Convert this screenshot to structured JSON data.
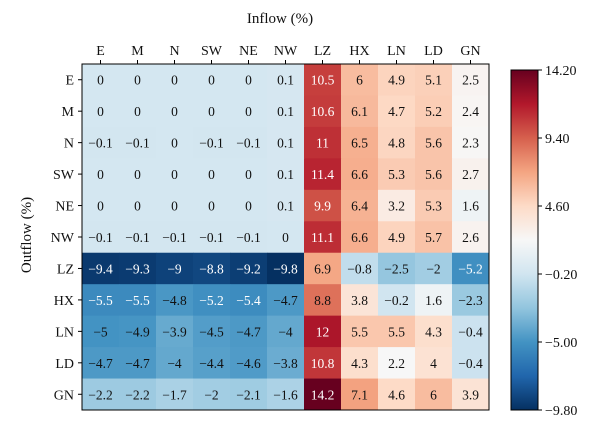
{
  "chart_data": {
    "type": "heatmap",
    "xlabel": "Inflow (%)",
    "ylabel": "Outflow (%)",
    "columns": [
      "E",
      "M",
      "N",
      "SW",
      "NE",
      "NW",
      "LZ",
      "HX",
      "LN",
      "LD",
      "GN"
    ],
    "rows": [
      "E",
      "M",
      "N",
      "SW",
      "NE",
      "NW",
      "LZ",
      "HX",
      "LN",
      "LD",
      "GN"
    ],
    "values": [
      [
        0,
        0,
        0,
        0,
        0,
        0.1,
        10.5,
        6,
        4.9,
        5.1,
        2.5
      ],
      [
        0,
        0,
        0,
        0,
        0,
        0.1,
        10.6,
        6.1,
        4.7,
        5.2,
        2.4
      ],
      [
        -0.1,
        -0.1,
        0,
        -0.1,
        -0.1,
        0.1,
        11,
        6.5,
        4.8,
        5.6,
        2.3
      ],
      [
        0,
        0,
        0,
        0,
        0,
        0.1,
        11.4,
        6.6,
        5.3,
        5.6,
        2.7
      ],
      [
        0,
        0,
        0,
        0,
        0,
        0.1,
        9.9,
        6.4,
        3.2,
        5.3,
        1.6
      ],
      [
        -0.1,
        -0.1,
        -0.1,
        -0.1,
        -0.1,
        0,
        11.1,
        6.6,
        4.9,
        5.7,
        2.6
      ],
      [
        -9.4,
        -9.3,
        -9,
        -8.8,
        -9.2,
        -9.8,
        6.9,
        -0.8,
        -2.5,
        -2,
        -5.2
      ],
      [
        -5.5,
        -5.5,
        -4.8,
        -5.2,
        -5.4,
        -4.7,
        8.8,
        3.8,
        -0.2,
        1.6,
        -2.3
      ],
      [
        -5,
        -4.9,
        -3.9,
        -4.5,
        -4.7,
        -4,
        12,
        5.5,
        5.5,
        4.3,
        -0.4
      ],
      [
        -4.7,
        -4.7,
        -4,
        -4.4,
        -4.6,
        -3.8,
        10.8,
        4.3,
        2.2,
        4,
        -0.4
      ],
      [
        -2.2,
        -2.2,
        -1.7,
        -2,
        -2.1,
        -1.6,
        14.2,
        7.1,
        4.6,
        6,
        3.9
      ]
    ],
    "colorbar": {
      "min": -9.8,
      "max": 14.2,
      "ticks": [
        14.2,
        9.4,
        4.6,
        -0.2,
        -5.0,
        -9.8
      ],
      "tick_labels": [
        "14.20",
        "9.40",
        "4.60",
        "−0.20",
        "−5.00",
        "−9.80"
      ],
      "colormap": "RdBu_r"
    }
  }
}
